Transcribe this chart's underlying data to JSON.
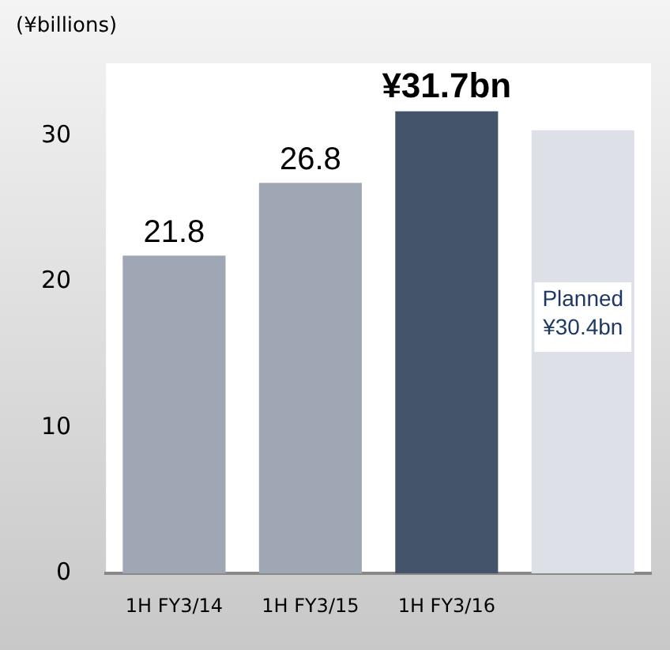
{
  "chart_data": {
    "type": "bar",
    "ylabel": "(¥billions)",
    "categories": [
      "1H FY3/14",
      "1H FY3/15",
      "1H FY3/16",
      null
    ],
    "values": [
      21.8,
      26.8,
      31.7,
      30.4
    ],
    "colors": [
      "#a0a7b4",
      "#a0a7b4",
      "#44546a",
      "#dde1e7"
    ],
    "value_labels": [
      "21.8",
      "26.8",
      "¥31.7bn",
      "Planned ¥30.4bn"
    ],
    "ylim": [
      0,
      35
    ],
    "yticks": [
      0,
      10,
      20,
      30
    ],
    "grid": false,
    "legend": false
  }
}
